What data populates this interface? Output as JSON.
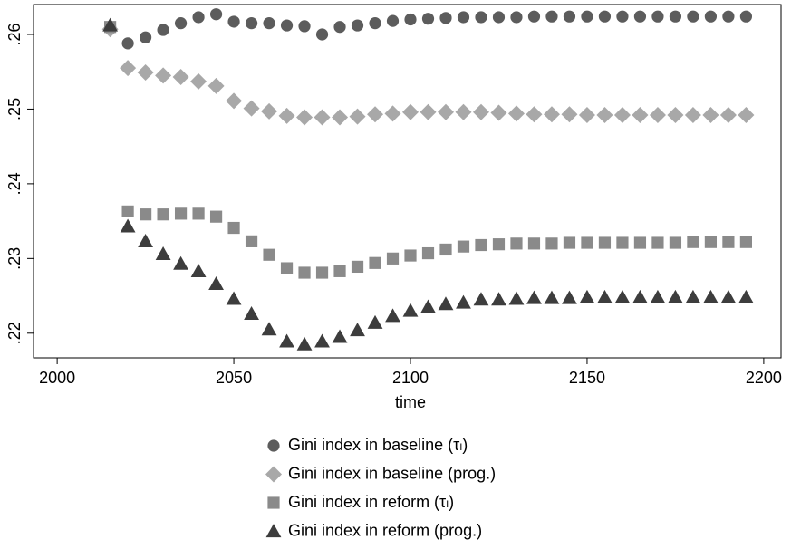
{
  "chart_data": {
    "type": "scatter",
    "x_label": "time",
    "x": [
      2015,
      2020,
      2025,
      2030,
      2035,
      2040,
      2045,
      2050,
      2055,
      2060,
      2065,
      2070,
      2075,
      2080,
      2085,
      2090,
      2095,
      2100,
      2105,
      2110,
      2115,
      2120,
      2125,
      2130,
      2135,
      2140,
      2145,
      2150,
      2155,
      2160,
      2165,
      2170,
      2175,
      2180,
      2185,
      2190,
      2195
    ],
    "xlim": [
      1993.3,
      2204.9
    ],
    "xticks": [
      2000,
      2050,
      2100,
      2150,
      2200
    ],
    "ylim": [
      0.2167,
      0.264
    ],
    "yticks": [
      {
        "value": 0.22,
        "label": ".22"
      },
      {
        "value": 0.23,
        "label": ".23"
      },
      {
        "value": 0.24,
        "label": ".24"
      },
      {
        "value": 0.25,
        "label": ".25"
      },
      {
        "value": 0.26,
        "label": ".26"
      }
    ],
    "grid": false,
    "series": [
      {
        "name": "Gini index in baseline (τₗ)",
        "color": "#5c5c5c",
        "symbol": "circle",
        "values": [
          0.261,
          0.2588,
          0.2596,
          0.2606,
          0.2615,
          0.2623,
          0.2627,
          0.2617,
          0.2615,
          0.2615,
          0.2612,
          0.2611,
          0.26,
          0.261,
          0.2612,
          0.2615,
          0.2618,
          0.262,
          0.2621,
          0.2622,
          0.2623,
          0.2623,
          0.2623,
          0.2623,
          0.2624,
          0.2624,
          0.2624,
          0.2624,
          0.2624,
          0.2624,
          0.2624,
          0.2624,
          0.2624,
          0.2624,
          0.2624,
          0.2624,
          0.2624
        ]
      },
      {
        "name": "Gini index in baseline (prog.)",
        "color": "#a8a8a8",
        "symbol": "diamond",
        "values": [
          0.2607,
          0.2555,
          0.2549,
          0.2545,
          0.2543,
          0.2537,
          0.2531,
          0.2511,
          0.2501,
          0.2497,
          0.2491,
          0.2489,
          0.2489,
          0.2489,
          0.249,
          0.2493,
          0.2494,
          0.2496,
          0.2496,
          0.2496,
          0.2496,
          0.2496,
          0.2495,
          0.2494,
          0.2493,
          0.2493,
          0.2493,
          0.2492,
          0.2492,
          0.2492,
          0.2492,
          0.2492,
          0.2492,
          0.2492,
          0.2492,
          0.2492,
          0.2492
        ]
      },
      {
        "name": "Gini index in reform (τₗ)",
        "color": "#8a8a8a",
        "symbol": "square",
        "values": [
          0.261,
          0.2363,
          0.2359,
          0.2359,
          0.236,
          0.236,
          0.2356,
          0.2341,
          0.2323,
          0.2305,
          0.2287,
          0.2281,
          0.2281,
          0.2283,
          0.2289,
          0.2294,
          0.23,
          0.2304,
          0.2307,
          0.2312,
          0.2316,
          0.2318,
          0.2319,
          0.232,
          0.232,
          0.232,
          0.2321,
          0.2321,
          0.2321,
          0.2321,
          0.2321,
          0.2321,
          0.2321,
          0.2322,
          0.2322,
          0.2322,
          0.2322
        ]
      },
      {
        "name": "Gini index in reform (prog.)",
        "color": "#3d3d3d",
        "symbol": "triangle",
        "values": [
          0.2612,
          0.2343,
          0.2323,
          0.2306,
          0.2293,
          0.2283,
          0.2266,
          0.2246,
          0.2226,
          0.2205,
          0.2189,
          0.2185,
          0.2189,
          0.2195,
          0.2204,
          0.2214,
          0.2223,
          0.223,
          0.2235,
          0.2239,
          0.2241,
          0.2245,
          0.2245,
          0.2246,
          0.2247,
          0.2247,
          0.2247,
          0.2248,
          0.2248,
          0.2248,
          0.2248,
          0.2248,
          0.2248,
          0.2248,
          0.2248,
          0.2248,
          0.2248
        ]
      }
    ]
  }
}
